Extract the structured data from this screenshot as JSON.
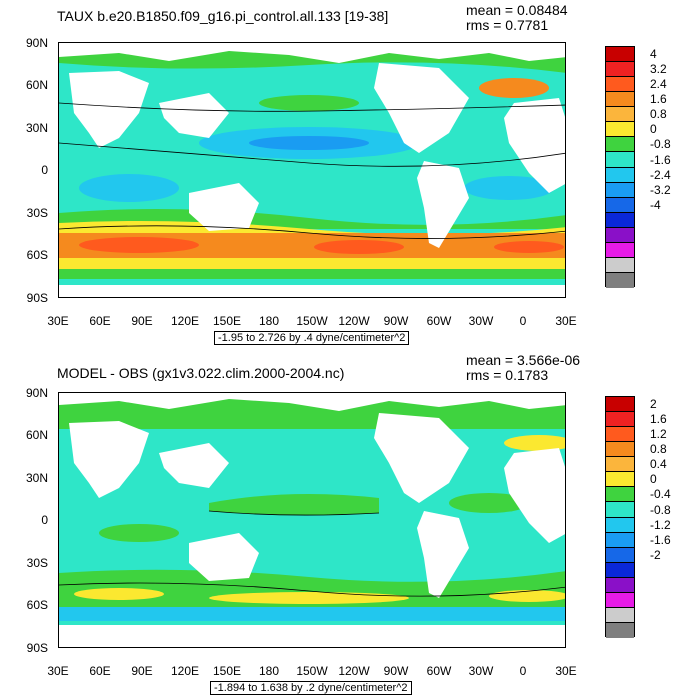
{
  "panel1": {
    "title": "TAUX b.e20.B1850.f09_g16.pi_control.all.133 [19-38]",
    "mean": "mean = 0.08484",
    "rms": "rms = 0.7781",
    "subtitle": "-1.95 to 2.726 by .4 dyne/centimeter^2",
    "colorbar_labels": [
      "4",
      "3.2",
      "2.4",
      "1.6",
      "0.8",
      "0",
      "-0.8",
      "-1.6",
      "-2.4",
      "-3.2",
      "-4"
    ],
    "colorbar_colors": [
      "#c80000",
      "#ee2222",
      "#ff5a1e",
      "#f58a1e",
      "#fbb53c",
      "#fbe830",
      "#3fd33f",
      "#2ee6c8",
      "#22c7ee",
      "#1a9cf2",
      "#1668e8",
      "#0a28d8",
      "#8a10c8",
      "#e61be6",
      "#cccccc",
      "#7f7f7f"
    ]
  },
  "panel2": {
    "title": "MODEL - OBS (gx1v3.022.clim.2000-2004.nc)",
    "mean": "mean = 3.566e-06",
    "rms": "rms = 0.1783",
    "subtitle": "-1.894 to 1.638 by .2 dyne/centimeter^2",
    "colorbar_labels": [
      "2",
      "1.6",
      "1.2",
      "0.8",
      "0.4",
      "0",
      "-0.4",
      "-0.8",
      "-1.2",
      "-1.6",
      "-2"
    ],
    "colorbar_colors": [
      "#c80000",
      "#ee2222",
      "#ff5a1e",
      "#f58a1e",
      "#fbb53c",
      "#fbe830",
      "#3fd33f",
      "#2ee6c8",
      "#22c7ee",
      "#1a9cf2",
      "#1668e8",
      "#0a28d8",
      "#8a10c8",
      "#e61be6",
      "#cccccc",
      "#7f7f7f"
    ]
  },
  "axes": {
    "lat_labels": [
      "90N",
      "60N",
      "30N",
      "0",
      "30S",
      "60S",
      "90S"
    ],
    "lon_labels": [
      "30E",
      "60E",
      "90E",
      "120E",
      "150E",
      "180",
      "150W",
      "120W",
      "90W",
      "60W",
      "30W",
      "0",
      "30E"
    ]
  }
}
